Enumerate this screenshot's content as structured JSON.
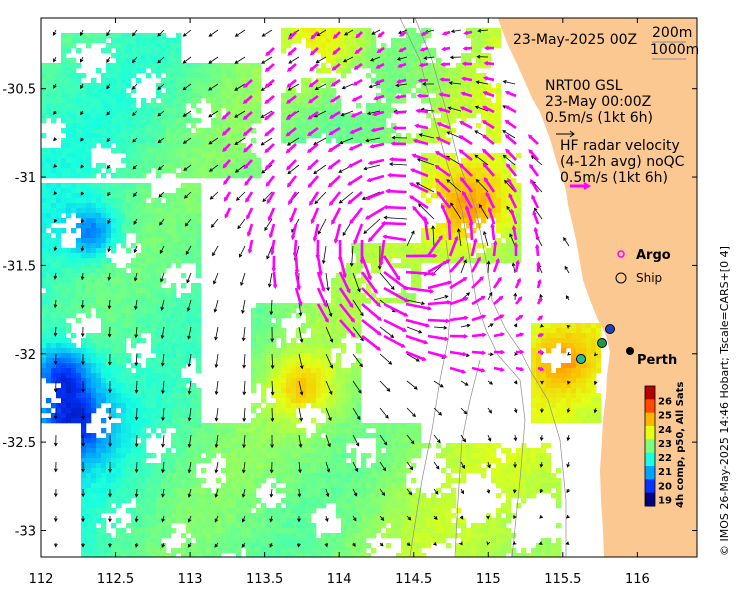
{
  "header": {
    "date_label": "23-May-2025 00Z",
    "contour_label_1": "200m",
    "contour_label_2": "1000m"
  },
  "legend": {
    "model_line1": "NRT00 GSL",
    "model_line2": "23-May 00:00Z",
    "model_line3": "0.5m/s (1kt 6h)",
    "radar_line1": "HF radar velocity",
    "radar_line2": "(4-12h avg) noQC",
    "radar_line3": "0.5m/s (1kt 6h)",
    "argo_label": "Argo",
    "ship_label": "Ship"
  },
  "place": {
    "city": "Perth"
  },
  "colorbar": {
    "title": "4h comp, p50, All Sats",
    "ticks": [
      "19",
      "20",
      "21",
      "22",
      "23",
      "24",
      "25",
      "26"
    ],
    "colors": [
      "#00007f",
      "#0034ff",
      "#00a4ff",
      "#17ffe0",
      "#7dff79",
      "#e4ff13",
      "#ffb600",
      "#ff4a00",
      "#b40000"
    ]
  },
  "credit": "© IMOS 26-May-2025 14:46 Hobart; Tscale=CARS+[0 4]",
  "axes": {
    "x_ticks": [
      "112",
      "112.5",
      "113",
      "113.5",
      "114",
      "114.5",
      "115",
      "115.5",
      "116"
    ],
    "y_ticks": [
      "-30.5",
      "-31",
      "-31.5",
      "-32",
      "-32.5",
      "-33"
    ],
    "x_range": [
      112,
      116.4
    ],
    "y_range": [
      -30.1,
      -33.15
    ]
  },
  "colors": {
    "land": "#fcc891",
    "radar_arrow": "#ff00ff",
    "model_arrow": "#000000"
  }
}
